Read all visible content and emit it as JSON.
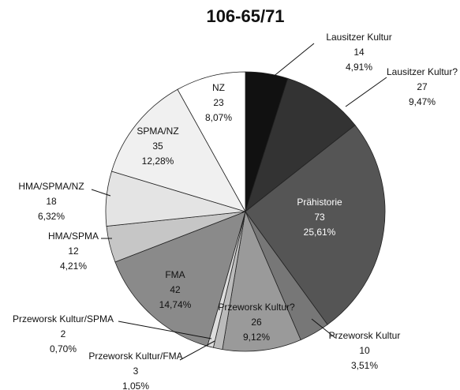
{
  "chart_data": {
    "type": "pie",
    "title": "106-65/71",
    "categories": [
      "Lausitzer Kultur",
      "Lausitzer Kultur?",
      "Prähistorie",
      "Przeworsk Kultur",
      "Przeworsk Kultur?",
      "Przeworsk Kultur/FMA",
      "Przeworsk Kultur/SPMA",
      "FMA",
      "HMA/SPMA",
      "HMA/SPMA/NZ",
      "SPMA/NZ",
      "NZ"
    ],
    "values": [
      14,
      27,
      73,
      10,
      26,
      3,
      2,
      42,
      12,
      18,
      35,
      23
    ],
    "percents": [
      4.91,
      9.47,
      25.61,
      3.51,
      9.12,
      1.05,
      0.7,
      14.74,
      4.21,
      6.32,
      12.28,
      8.07
    ],
    "percent_labels": [
      "4,91%",
      "9,47%",
      "25,61%",
      "3,51%",
      "9,12%",
      "1,05%",
      "0,70%",
      "14,74%",
      "4,21%",
      "6,32%",
      "12,28%",
      "8,07%"
    ],
    "colors": [
      "#111111",
      "#333333",
      "#555555",
      "#777777",
      "#9a9a9a",
      "#bbbbbb",
      "#dddddd",
      "#8a8a8a",
      "#c6c6c6",
      "#e4e4e4",
      "#f0f0f0",
      "#ffffff"
    ]
  }
}
